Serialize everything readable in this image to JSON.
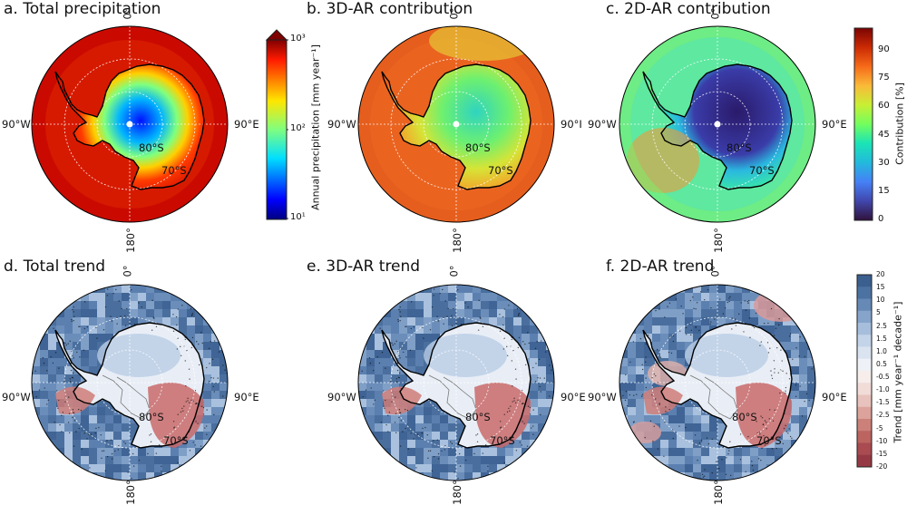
{
  "panels": [
    {
      "id": "a",
      "title": "a. Total precipitation",
      "kind": "precip",
      "lon_top": "0°",
      "lon_left": "90°W",
      "lon_right": "90°E",
      "lon_bottom": "180°",
      "lat_inner": "80°S",
      "lat_outer": "70°S"
    },
    {
      "id": "b",
      "title": "b. 3D-AR contribution",
      "kind": "ar3d",
      "lon_top": "0°",
      "lon_left": "90°W",
      "lon_right": "90°I",
      "lon_bottom": "180°",
      "lat_inner": "80°S",
      "lat_outer": "70°S"
    },
    {
      "id": "c",
      "title": "c. 2D-AR contribution",
      "kind": "ar2d",
      "lon_top": "0°",
      "lon_left": "90°W",
      "lon_right": "90°E",
      "lon_bottom": "180°",
      "lat_inner": "80°S",
      "lat_outer": "70°S"
    },
    {
      "id": "d",
      "title": "d. Total trend",
      "kind": "trend",
      "lon_top": "0°",
      "lon_left": "90°W",
      "lon_right": "90°E",
      "lon_bottom": "180°",
      "lat_inner": "80°S",
      "lat_outer": "70°S"
    },
    {
      "id": "e",
      "title": "e. 3D-AR trend",
      "kind": "trend",
      "lon_top": "0°",
      "lon_left": "90°W",
      "lon_right": "90°E",
      "lon_bottom": "180°",
      "lat_inner": "80°S",
      "lat_outer": "70°S"
    },
    {
      "id": "f",
      "title": "f. 2D-AR trend",
      "kind": "trend2",
      "lon_top": "0°",
      "lon_left": "90°W",
      "lon_right": "90°E",
      "lon_bottom": "180°",
      "lat_inner": "80°S",
      "lat_outer": "70°S"
    }
  ],
  "colorbars": {
    "precip": {
      "label": "Annual precipitation [mm year⁻¹]",
      "ticks": [
        "10³",
        "10²",
        "10¹"
      ],
      "colormap": "jet",
      "scale": "log",
      "range": [
        10,
        1000
      ],
      "extend": "max"
    },
    "contribution": {
      "label": "Contribution [%]",
      "ticks": [
        "90",
        "75",
        "60",
        "45",
        "30",
        "15",
        "0"
      ],
      "colormap": "turbo",
      "range": [
        0,
        100
      ]
    },
    "trend": {
      "label": "Trend [mm year⁻¹ decade⁻¹]",
      "ticks": [
        "20",
        "15",
        "10",
        "5",
        "2.5",
        "1.5",
        "1.0",
        "0.5",
        "-0.5",
        "-1.0",
        "-1.5",
        "-2.5",
        "-5",
        "-10",
        "-15",
        "-20"
      ],
      "colormap": "diverging red-white-blue",
      "range": [
        -20,
        20
      ]
    }
  },
  "colors": {
    "continent_outline": "#000000",
    "graticule": "#ffffff",
    "trend_positive": "#3b5f8e",
    "trend_negative": "#b0424a"
  }
}
